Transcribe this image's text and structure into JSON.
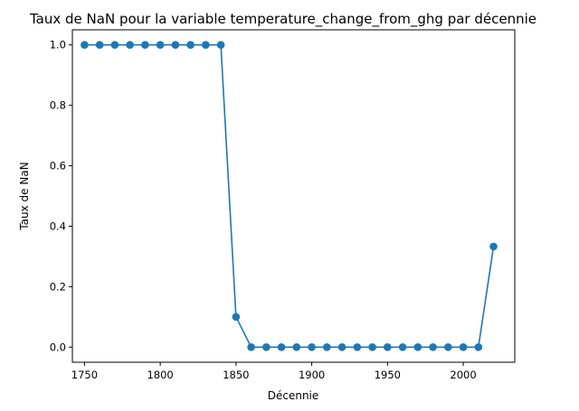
{
  "chart_data": {
    "type": "line",
    "title": "Taux de NaN pour la variable temperature_change_from_ghg par décennie",
    "xlabel": "Décennie",
    "ylabel": "Taux de NaN",
    "xlim": [
      1742,
      2034
    ],
    "ylim": [
      -0.05,
      1.05
    ],
    "x_ticks": [
      1750,
      1800,
      1850,
      1900,
      1950,
      2000
    ],
    "y_ticks": [
      0.0,
      0.2,
      0.4,
      0.6,
      0.8,
      1.0
    ],
    "x_tick_labels": [
      "1750",
      "1800",
      "1850",
      "1900",
      "1950",
      "2000"
    ],
    "y_tick_labels": [
      "0.0",
      "0.2",
      "0.4",
      "0.6",
      "0.8",
      "1.0"
    ],
    "grid": false,
    "marker": "circle",
    "color": "#1f77b4",
    "series": [
      {
        "x": [
          1750,
          1760,
          1770,
          1780,
          1790,
          1800,
          1810,
          1820,
          1830,
          1840,
          1850,
          1860,
          1870,
          1880,
          1890,
          1900,
          1910,
          1920,
          1930,
          1940,
          1950,
          1960,
          1970,
          1980,
          1990,
          2000,
          2010,
          2020
        ],
        "y": [
          1.0,
          1.0,
          1.0,
          1.0,
          1.0,
          1.0,
          1.0,
          1.0,
          1.0,
          1.0,
          0.1,
          0.0,
          0.0,
          0.0,
          0.0,
          0.0,
          0.0,
          0.0,
          0.0,
          0.0,
          0.0,
          0.0,
          0.0,
          0.0,
          0.0,
          0.0,
          0.0,
          0.333
        ]
      }
    ]
  }
}
